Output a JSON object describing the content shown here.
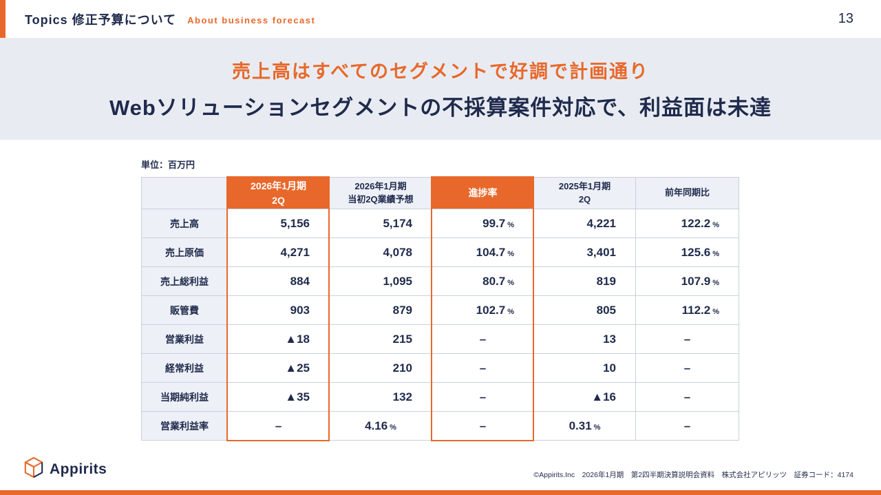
{
  "header": {
    "title": "Topics 修正予算について",
    "subtitle": "About business forecast",
    "page_number": "13"
  },
  "banner": {
    "line1": "売上高はすべてのセグメントで好調で計画通り",
    "line2": "Webソリューションセグメントの不採算案件対応で、利益面は未達"
  },
  "unit_label": "単位：百万円",
  "table": {
    "columns": [
      {
        "label": "2026年1月期\n2Q",
        "highlight": true
      },
      {
        "label": "2026年1月期\n当初2Q業績予想",
        "highlight": false
      },
      {
        "label": "進捗率",
        "highlight": true
      },
      {
        "label": "2025年1月期\n2Q",
        "highlight": false
      },
      {
        "label": "前年同期比",
        "highlight": false
      }
    ],
    "rows": [
      {
        "label": "売上高",
        "center": false,
        "values": [
          "5,156",
          "5,174",
          "99.7%",
          "4,221",
          "122.2%"
        ]
      },
      {
        "label": "売上原価",
        "center": false,
        "values": [
          "4,271",
          "4,078",
          "104.7%",
          "3,401",
          "125.6%"
        ]
      },
      {
        "label": "売上総利益",
        "center": false,
        "values": [
          "884",
          "1,095",
          "80.7%",
          "819",
          "107.9%"
        ]
      },
      {
        "label": "販管費",
        "center": false,
        "values": [
          "903",
          "879",
          "102.7%",
          "805",
          "112.2%"
        ]
      },
      {
        "label": "営業利益",
        "center": false,
        "values": [
          "▲18",
          "215",
          "–",
          "13",
          "–"
        ]
      },
      {
        "label": "経常利益",
        "center": false,
        "values": [
          "▲25",
          "210",
          "–",
          "10",
          "–"
        ]
      },
      {
        "label": "当期純利益",
        "center": false,
        "values": [
          "▲35",
          "132",
          "–",
          "▲16",
          "–"
        ]
      },
      {
        "label": "営業利益率",
        "center": true,
        "values": [
          "–",
          "4.16%",
          "–",
          "0.31%",
          "–"
        ]
      }
    ]
  },
  "footer": {
    "logo_text": "Appirits",
    "credit": "©Appirits.Inc　2026年1月期　第2四半期決算説明会資料　株式会社アピリッツ　証券コード：4174"
  },
  "colors": {
    "accent": "#E8682B",
    "navy": "#1F2A4C",
    "banner_bg": "#E8ECF2",
    "table_head_bg": "#EDF0F6",
    "table_border": "#C9CFDA"
  }
}
